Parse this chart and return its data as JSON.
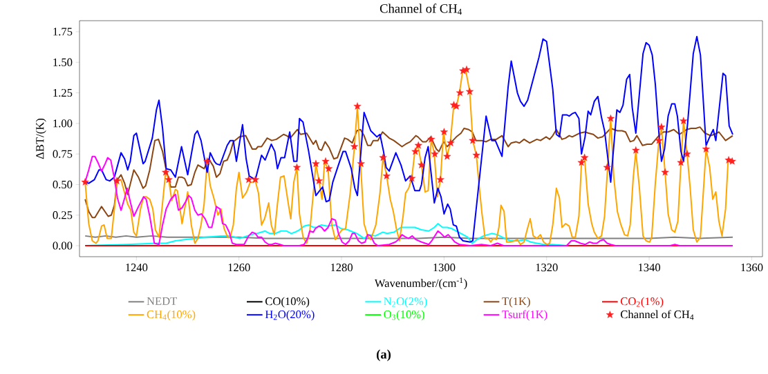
{
  "chart_data": {
    "type": "line",
    "title": "Channel of CH$_{4}$",
    "xlabel": "Wavenumber/(cm$^{-1}$)",
    "ylabel": "ΔBT/(K)",
    "annotations": [
      "(a)"
    ],
    "xlim": [
      1228.9,
      1362.1
    ],
    "ylim": [
      -0.09,
      1.84
    ],
    "xticks": [
      1240,
      1260,
      1280,
      1300,
      1320,
      1340,
      1360
    ],
    "yticks": [
      {
        "value": 0,
        "label": "0.00"
      },
      {
        "value": 0.25,
        "label": "0.25"
      },
      {
        "value": 0.5,
        "label": "0.50"
      },
      {
        "value": 0.75,
        "label": "0.75"
      },
      {
        "value": 1,
        "label": "1.00"
      },
      {
        "value": 1.25,
        "label": "1.25"
      },
      {
        "value": 1.5,
        "label": "1.50"
      },
      {
        "value": 1.75,
        "label": "1.75"
      }
    ],
    "legend": "bottom",
    "series": [
      {
        "name": "NEDT",
        "color": "#808080",
        "x": [
          1230,
          1232,
          1234,
          1236,
          1238,
          1240,
          1243,
          1246,
          1250,
          1255,
          1260,
          1265,
          1270,
          1275,
          1280,
          1285,
          1290,
          1295,
          1300,
          1305,
          1310,
          1315,
          1320,
          1325,
          1330,
          1335,
          1340,
          1345,
          1350,
          1356.3
        ],
        "values": [
          0.08,
          0.07,
          0.08,
          0.07,
          0.08,
          0.07,
          0.08,
          0.07,
          0.07,
          0.07,
          0.07,
          0.06,
          0.06,
          0.06,
          0.06,
          0.06,
          0.06,
          0.06,
          0.07,
          0.06,
          0.06,
          0.06,
          0.06,
          0.06,
          0.06,
          0.06,
          0.06,
          0.07,
          0.06,
          0.07
        ]
      },
      {
        "name": "CO(10%)",
        "color": "#000000"
      },
      {
        "name": "N$_{2}$O(2%)",
        "color": "#00ffff",
        "x": [
          1230.0,
          1238.1,
          1244.0,
          1245.8,
          1247.6,
          1249.4,
          1251.8,
          1253.4,
          1256.5,
          1258.3,
          1260.1,
          1262.4,
          1263.5,
          1265.1,
          1266.0,
          1267.1,
          1268.2,
          1269.3,
          1270.2,
          1270.9,
          1271.8,
          1272.7,
          1273.6,
          1274.5,
          1275.2,
          1276.1,
          1277.2,
          1278.8,
          1279.9,
          1281.2,
          1283.0,
          1284.4,
          1285.3,
          1286.6,
          1288.0,
          1288.9,
          1290.2,
          1291.6,
          1292.5,
          1294.3,
          1295.6,
          1297.0,
          1298.1,
          1298.8,
          1299.7,
          1300.6,
          1301.5,
          1302.4,
          1303.3,
          1304.6,
          1305.5,
          1306.4,
          1307.7,
          1309.3,
          1310.4,
          1311.8,
          1312.9,
          1314.5,
          1315.8,
          1316.9,
          1318.1,
          1319.4,
          1321.2,
          1323.9,
          1326.6,
          1356.3
        ],
        "values": [
          0.0,
          0.01,
          0.02,
          0.02,
          0.04,
          0.05,
          0.06,
          0.07,
          0.08,
          0.08,
          0.06,
          0.09,
          0.1,
          0.12,
          0.1,
          0.1,
          0.12,
          0.12,
          0.1,
          0.11,
          0.13,
          0.16,
          0.17,
          0.15,
          0.15,
          0.17,
          0.16,
          0.17,
          0.14,
          0.13,
          0.1,
          0.06,
          0.09,
          0.08,
          0.11,
          0.1,
          0.11,
          0.15,
          0.15,
          0.15,
          0.13,
          0.12,
          0.15,
          0.18,
          0.15,
          0.15,
          0.14,
          0.12,
          0.1,
          0.07,
          0.02,
          0.05,
          0.08,
          0.1,
          0.09,
          0.06,
          0.04,
          0.04,
          0.05,
          0.03,
          0.02,
          0.01,
          0.01,
          0.0,
          0.0,
          0.0
        ]
      },
      {
        "name": "T(1K)",
        "color": "#8b4513",
        "x": [
          1230.0,
          1230.7,
          1231.4,
          1231.9,
          1233.2,
          1234.5,
          1235.1,
          1235.7,
          1236.3,
          1237.0,
          1237.7,
          1238.3,
          1239.5,
          1240.4,
          1241.3,
          1241.8,
          1242.6,
          1243.6,
          1244.3,
          1245.1,
          1245.8,
          1246.7,
          1247.6,
          1248.2,
          1248.9,
          1249.4,
          1250.0,
          1250.7,
          1251.4,
          1252.0,
          1253.2,
          1254.1,
          1255.0,
          1255.6,
          1256.3,
          1257.0,
          1257.7,
          1258.3,
          1258.9,
          1260.1,
          1261.3,
          1261.9,
          1262.6,
          1263.3,
          1263.7,
          1264.4,
          1265.5,
          1266.4,
          1267.3,
          1268.7,
          1269.3,
          1270.0,
          1271.4,
          1272.0,
          1273.2,
          1274.5,
          1275.0,
          1275.6,
          1276.1,
          1276.8,
          1277.6,
          1278.5,
          1279.2,
          1280.6,
          1281.2,
          1282.1,
          1283.0,
          1283.7,
          1284.4,
          1285.1,
          1285.7,
          1286.2,
          1287.1,
          1288.0,
          1289.3,
          1290.2,
          1291.8,
          1292.5,
          1293.4,
          1294.5,
          1294.9,
          1295.8,
          1296.5,
          1297.4,
          1298.5,
          1299.0,
          1299.9,
          1300.6,
          1301.5,
          1302.4,
          1303.3,
          1303.9,
          1304.8,
          1305.5,
          1306.2,
          1307.3,
          1308.2,
          1309.1,
          1310.2,
          1311.3,
          1312.5,
          1313.1,
          1314.0,
          1314.7,
          1315.6,
          1316.7,
          1318.1,
          1318.8,
          1319.9,
          1320.6,
          1321.2,
          1321.9,
          1323.0,
          1323.7,
          1324.4,
          1325.0,
          1326.4,
          1327.5,
          1328.2,
          1329.1,
          1330.0,
          1330.9,
          1332.5,
          1333.8,
          1334.7,
          1335.4,
          1336.3,
          1337.0,
          1337.6,
          1338.7,
          1339.6,
          1340.5,
          1341.9,
          1342.8,
          1343.7,
          1344.8,
          1345.9,
          1347.3,
          1348.2,
          1349.1,
          1349.9,
          1350.9,
          1352.0,
          1352.7,
          1353.6,
          1354.9,
          1356.3
        ],
        "values": [
          0.38,
          0.28,
          0.23,
          0.23,
          0.32,
          0.24,
          0.25,
          0.33,
          0.54,
          0.58,
          0.51,
          0.42,
          0.62,
          0.56,
          0.47,
          0.49,
          0.62,
          0.86,
          0.87,
          0.77,
          0.62,
          0.48,
          0.48,
          0.56,
          0.56,
          0.55,
          0.49,
          0.5,
          0.6,
          0.66,
          0.63,
          0.71,
          0.65,
          0.56,
          0.59,
          0.69,
          0.7,
          0.76,
          0.85,
          0.89,
          0.9,
          0.85,
          0.79,
          0.79,
          0.81,
          0.81,
          0.88,
          0.86,
          0.87,
          0.91,
          0.9,
          0.88,
          0.95,
          0.91,
          0.92,
          0.83,
          0.86,
          0.79,
          0.78,
          0.85,
          0.8,
          0.71,
          0.72,
          0.88,
          0.87,
          0.84,
          0.94,
          0.95,
          0.9,
          0.82,
          0.82,
          0.86,
          0.86,
          0.93,
          0.88,
          0.86,
          0.81,
          0.83,
          0.85,
          0.9,
          0.89,
          0.85,
          0.85,
          0.89,
          0.79,
          0.77,
          0.85,
          0.81,
          0.85,
          0.89,
          0.92,
          0.96,
          0.95,
          0.93,
          0.86,
          0.86,
          0.85,
          0.87,
          0.87,
          0.9,
          0.81,
          0.84,
          0.85,
          0.84,
          0.87,
          0.84,
          0.87,
          0.86,
          0.89,
          0.87,
          0.9,
          0.95,
          0.87,
          0.88,
          0.9,
          0.89,
          0.92,
          0.93,
          0.92,
          0.91,
          0.88,
          0.89,
          0.96,
          0.94,
          0.94,
          0.93,
          0.85,
          0.86,
          0.9,
          0.82,
          0.83,
          0.83,
          0.9,
          0.93,
          0.93,
          0.95,
          0.91,
          0.95,
          0.96,
          0.96,
          0.97,
          0.92,
          0.9,
          0.91,
          0.93,
          0.86,
          0.9
        ]
      },
      {
        "name": "CO$_{2}$(1%)",
        "color": "#ff0000",
        "x": [
          1230,
          1356.3
        ],
        "values": [
          0,
          0
        ]
      },
      {
        "name": "CH$_{4}$(10%)",
        "color": "#ffa500",
        "x": [
          1230.0,
          1230.7,
          1231.4,
          1232.1,
          1232.5,
          1233.2,
          1233.7,
          1234.3,
          1235.1,
          1235.8,
          1236.3,
          1237.0,
          1237.7,
          1238.3,
          1238.9,
          1239.5,
          1240.0,
          1240.8,
          1241.4,
          1241.9,
          1242.6,
          1243.2,
          1243.7,
          1244.4,
          1245.1,
          1245.7,
          1246.3,
          1246.9,
          1247.6,
          1248.0,
          1248.9,
          1250.0,
          1250.7,
          1251.4,
          1252.0,
          1252.6,
          1253.2,
          1253.8,
          1254.4,
          1255.1,
          1255.9,
          1256.5,
          1257.1,
          1257.8,
          1258.3,
          1258.9,
          1259.5,
          1260.0,
          1260.7,
          1261.5,
          1262.2,
          1262.6,
          1263.2,
          1263.8,
          1264.4,
          1265.0,
          1265.8,
          1266.3,
          1266.9,
          1267.5,
          1268.1,
          1268.8,
          1269.6,
          1270.1,
          1270.7,
          1271.3,
          1271.8,
          1272.5,
          1273.2,
          1273.8,
          1274.5,
          1275.0,
          1275.6,
          1276.2,
          1276.7,
          1277.4,
          1278.1,
          1278.8,
          1279.4,
          1280.1,
          1280.8,
          1281.7,
          1282.5,
          1283.1,
          1283.7,
          1284.4,
          1285.1,
          1285.7,
          1286.7,
          1287.5,
          1288.1,
          1288.8,
          1289.5,
          1290.1,
          1290.7,
          1291.3,
          1292.0,
          1292.5,
          1293.1,
          1293.7,
          1294.3,
          1294.9,
          1295.6,
          1296.3,
          1296.9,
          1297.5,
          1298.1,
          1298.7,
          1299.3,
          1299.9,
          1300.6,
          1301.2,
          1301.9,
          1302.4,
          1303.0,
          1303.6,
          1304.2,
          1305.0,
          1305.6,
          1306.3,
          1306.8,
          1307.4,
          1308.0,
          1308.6,
          1309.1,
          1309.6,
          1310.2,
          1310.7,
          1311.1,
          1311.7,
          1312.2,
          1312.9,
          1313.8,
          1314.3,
          1314.9,
          1315.6,
          1316.2,
          1316.8,
          1317.4,
          1318.1,
          1318.8,
          1319.4,
          1320.1,
          1320.6,
          1321.2,
          1321.9,
          1322.5,
          1323.0,
          1323.7,
          1324.4,
          1325.0,
          1325.6,
          1326.3,
          1326.8,
          1327.4,
          1328.1,
          1328.8,
          1329.3,
          1330.0,
          1330.7,
          1331.3,
          1331.9,
          1332.5,
          1333.1,
          1333.8,
          1334.5,
          1335.2,
          1335.8,
          1336.3,
          1336.9,
          1337.4,
          1338.1,
          1338.8,
          1339.4,
          1340.1,
          1340.5,
          1341.2,
          1341.9,
          1342.4,
          1343.1,
          1343.7,
          1344.4,
          1345.0,
          1345.6,
          1346.2,
          1346.7,
          1347.4,
          1348.0,
          1348.6,
          1349.3,
          1350.0,
          1351.1,
          1351.8,
          1352.4,
          1353.0,
          1353.6,
          1354.2,
          1354.9,
          1355.4,
          1356.1
        ],
        "values": [
          0.52,
          0.18,
          0.04,
          0.02,
          0.04,
          0.16,
          0.17,
          0.06,
          0.06,
          0.34,
          0.53,
          0.54,
          0.43,
          0.34,
          0.29,
          0.11,
          0.08,
          0.3,
          0.4,
          0.4,
          0.38,
          0.3,
          0.13,
          0.07,
          0.35,
          0.6,
          0.54,
          0.37,
          0.46,
          0.45,
          0.18,
          0.44,
          0.17,
          0.02,
          0.06,
          0.17,
          0.34,
          0.69,
          0.49,
          0.39,
          0.25,
          0.3,
          0.14,
          0.07,
          0.07,
          0.17,
          0.47,
          0.6,
          0.39,
          0.44,
          0.52,
          0.52,
          0.53,
          0.43,
          0.17,
          0.22,
          0.35,
          0.17,
          0.09,
          0.34,
          0.56,
          0.57,
          0.35,
          0.22,
          0.52,
          0.64,
          0.26,
          0.07,
          0.02,
          0.11,
          0.43,
          0.67,
          0.53,
          0.38,
          0.69,
          0.62,
          0.17,
          0.05,
          0.09,
          0.13,
          0.14,
          0.43,
          0.8,
          1.14,
          0.68,
          0.18,
          0.08,
          0.05,
          0.17,
          0.43,
          0.72,
          0.57,
          0.38,
          0.28,
          0.14,
          0.04,
          0.24,
          0.43,
          0.47,
          0.55,
          0.77,
          0.82,
          0.66,
          0.44,
          0.45,
          0.87,
          0.75,
          0.4,
          0.54,
          0.93,
          0.73,
          0.84,
          1.15,
          1.14,
          1.25,
          1.42,
          1.44,
          1.26,
          0.86,
          0.74,
          0.51,
          0.26,
          0.06,
          0.06,
          0.03,
          0.06,
          0.05,
          0.15,
          0.33,
          0.28,
          0.03,
          0.03,
          0.04,
          0.05,
          0.01,
          0.03,
          0.13,
          0.22,
          0.08,
          0.06,
          0.09,
          0.03,
          0.01,
          0.02,
          0.17,
          0.47,
          0.39,
          0.15,
          0.18,
          0.16,
          0.07,
          0.07,
          0.24,
          0.68,
          0.72,
          0.34,
          0.18,
          0.11,
          0.06,
          0.08,
          0.24,
          0.64,
          1.04,
          0.56,
          0.28,
          0.17,
          0.09,
          0.08,
          0.17,
          0.56,
          0.77,
          0.47,
          0.08,
          0.04,
          0.03,
          0.07,
          0.51,
          0.86,
          0.97,
          0.6,
          0.26,
          0.13,
          0.11,
          0.2,
          0.68,
          1.02,
          0.75,
          0.47,
          0.13,
          0.03,
          0.07,
          0.79,
          0.64,
          0.38,
          0.44,
          0.2,
          0.08,
          0.3,
          0.7,
          0.69
        ]
      },
      {
        "name": "H$_{2}$O(20%)",
        "color": "#0000ff",
        "x": [
          1230.0,
          1230.7,
          1231.8,
          1232.7,
          1233.2,
          1234.1,
          1234.8,
          1235.7,
          1237.0,
          1237.7,
          1238.3,
          1238.8,
          1239.5,
          1240.0,
          1241.3,
          1241.7,
          1243.1,
          1243.9,
          1244.4,
          1245.1,
          1245.8,
          1246.7,
          1247.6,
          1248.8,
          1250.0,
          1251.4,
          1251.9,
          1252.6,
          1253.8,
          1254.4,
          1255.2,
          1255.6,
          1256.3,
          1257.7,
          1258.3,
          1258.9,
          1259.5,
          1260.7,
          1261.4,
          1262.0,
          1263.2,
          1264.4,
          1265.1,
          1266.3,
          1267.0,
          1267.5,
          1268.2,
          1268.9,
          1269.9,
          1270.7,
          1271.3,
          1271.8,
          1272.5,
          1273.6,
          1275.0,
          1276.3,
          1277.0,
          1277.6,
          1278.3,
          1279.4,
          1280.3,
          1280.8,
          1281.9,
          1282.6,
          1283.1,
          1284.4,
          1285.7,
          1286.9,
          1287.5,
          1288.2,
          1288.7,
          1289.3,
          1290.6,
          1291.6,
          1292.5,
          1293.4,
          1294.3,
          1295.2,
          1295.6,
          1296.3,
          1296.9,
          1297.3,
          1298.1,
          1298.8,
          1299.4,
          1300.0,
          1300.7,
          1301.2,
          1301.8,
          1302.4,
          1303.0,
          1303.7,
          1305.1,
          1305.6,
          1308.2,
          1309.3,
          1310.0,
          1311.3,
          1312.5,
          1313.1,
          1314.3,
          1314.9,
          1315.6,
          1316.3,
          1318.5,
          1319.3,
          1320.0,
          1321.2,
          1321.9,
          1322.5,
          1323.1,
          1323.9,
          1324.4,
          1325.0,
          1325.6,
          1326.3,
          1326.8,
          1327.5,
          1328.1,
          1328.6,
          1329.3,
          1330.0,
          1330.7,
          1331.3,
          1332.5,
          1333.7,
          1334.3,
          1334.9,
          1335.6,
          1336.2,
          1336.7,
          1337.4,
          1338.8,
          1339.4,
          1340.0,
          1340.6,
          1341.2,
          1341.9,
          1342.4,
          1343.0,
          1343.7,
          1344.4,
          1345.0,
          1345.5,
          1346.2,
          1346.7,
          1347.5,
          1348.6,
          1349.3,
          1350.0,
          1351.1,
          1351.7,
          1352.5,
          1353.0,
          1354.4,
          1354.9,
          1355.6,
          1356.3
        ],
        "values": [
          0.52,
          0.51,
          0.54,
          0.62,
          0.62,
          0.54,
          0.53,
          0.56,
          0.76,
          0.71,
          0.62,
          0.69,
          0.9,
          0.92,
          0.67,
          0.69,
          0.88,
          1.11,
          1.19,
          0.96,
          0.63,
          0.62,
          0.56,
          0.81,
          0.58,
          0.91,
          0.94,
          0.86,
          0.6,
          0.76,
          0.69,
          0.67,
          0.66,
          0.82,
          0.86,
          0.86,
          0.69,
          0.99,
          0.71,
          0.57,
          0.54,
          0.74,
          0.7,
          0.83,
          0.77,
          0.63,
          0.72,
          0.72,
          0.93,
          0.69,
          0.69,
          1.04,
          1.01,
          0.77,
          0.41,
          0.48,
          0.36,
          0.37,
          0.52,
          0.66,
          0.77,
          0.77,
          0.63,
          0.47,
          0.41,
          1.09,
          0.94,
          0.89,
          0.91,
          0.77,
          0.64,
          0.61,
          0.76,
          0.66,
          0.53,
          0.57,
          0.45,
          0.45,
          0.5,
          0.72,
          0.81,
          0.66,
          0.35,
          0.47,
          0.4,
          0.26,
          0.34,
          0.3,
          0.17,
          0.16,
          0.07,
          0.04,
          0.03,
          0.04,
          1.06,
          0.86,
          0.86,
          0.73,
          1.3,
          1.51,
          1.25,
          1.18,
          1.14,
          1.19,
          1.54,
          1.69,
          1.67,
          1.28,
          0.91,
          0.89,
          1.07,
          1.07,
          1.06,
          1.08,
          1.09,
          1.04,
          0.75,
          0.89,
          1.1,
          1.07,
          1.18,
          1.22,
          1.05,
          0.94,
          0.52,
          1.11,
          1.09,
          1.15,
          1.36,
          1.4,
          1.13,
          0.92,
          1.57,
          1.66,
          1.64,
          1.56,
          1.32,
          0.92,
          0.69,
          0.79,
          1.06,
          1.16,
          1.16,
          1.06,
          0.77,
          0.69,
          1.0,
          1.57,
          1.71,
          1.56,
          0.82,
          0.88,
          0.95,
          0.86,
          1.41,
          1.39,
          0.98,
          0.91
        ]
      },
      {
        "name": "O$_{3}$(10%)",
        "color": "#00ff00"
      },
      {
        "name": "Tsurf(1K)",
        "color": "#ff00ff",
        "x": [
          1230.0,
          1230.7,
          1231.4,
          1231.9,
          1232.5,
          1233.2,
          1233.9,
          1234.4,
          1235.0,
          1235.7,
          1236.3,
          1237.0,
          1237.7,
          1238.2,
          1238.8,
          1239.5,
          1240.4,
          1241.4,
          1241.9,
          1242.6,
          1243.5,
          1244.4,
          1245.1,
          1245.8,
          1246.7,
          1247.6,
          1248.2,
          1248.9,
          1249.6,
          1250.2,
          1250.7,
          1251.4,
          1252.0,
          1252.7,
          1253.4,
          1254.1,
          1254.7,
          1255.6,
          1256.3,
          1256.8,
          1257.4,
          1258.1,
          1258.7,
          1259.5,
          1261.0,
          1261.9,
          1262.6,
          1263.2,
          1263.7,
          1264.4,
          1265.1,
          1265.8,
          1266.4,
          1267.1,
          1268.0,
          1268.7,
          1271.8,
          1272.7,
          1273.4,
          1273.8,
          1274.5,
          1274.9,
          1275.6,
          1276.1,
          1276.7,
          1277.4,
          1278.1,
          1278.8,
          1279.4,
          1280.1,
          1280.8,
          1281.5,
          1282.1,
          1282.6,
          1283.3,
          1283.9,
          1284.6,
          1285.1,
          1285.7,
          1286.4,
          1287.1,
          1289.3,
          1290.5,
          1291.1,
          1291.8,
          1292.5,
          1293.1,
          1293.8,
          1294.5,
          1295.6,
          1297.0,
          1297.6,
          1298.8,
          1299.4,
          1300.1,
          1300.8,
          1301.5,
          1302.1,
          1303.0,
          1305.1,
          1307.3,
          1309.1,
          1310.4,
          1311.6,
          1323.9,
          1324.8,
          1325.5,
          1326.6,
          1327.5,
          1328.4,
          1329.1,
          1329.8,
          1330.4,
          1331.1,
          1331.8,
          1332.5,
          1333.4,
          1344.1,
          1345.0,
          1345.9,
          1356.3
        ],
        "values": [
          0.52,
          0.62,
          0.73,
          0.73,
          0.68,
          0.61,
          0.67,
          0.72,
          0.7,
          0.55,
          0.39,
          0.29,
          0.39,
          0.47,
          0.36,
          0.24,
          0.32,
          0.4,
          0.38,
          0.24,
          0.02,
          0.01,
          0.17,
          0.3,
          0.38,
          0.42,
          0.29,
          0.31,
          0.36,
          0.41,
          0.39,
          0.29,
          0.25,
          0.26,
          0.22,
          0.15,
          0.15,
          0.32,
          0.3,
          0.18,
          0.17,
          0.11,
          0.02,
          0.01,
          0.01,
          0.08,
          0.11,
          0.1,
          0.07,
          0.07,
          0.03,
          0.01,
          0.01,
          0.02,
          0.01,
          0.0,
          0.0,
          0.01,
          0.06,
          0.12,
          0.11,
          0.14,
          0.16,
          0.15,
          0.12,
          0.15,
          0.22,
          0.21,
          0.1,
          0.03,
          0.01,
          0.04,
          0.1,
          0.1,
          0.04,
          0.02,
          0.03,
          0.09,
          0.08,
          0.02,
          0.0,
          0.01,
          0.03,
          0.05,
          0.09,
          0.07,
          0.06,
          0.08,
          0.05,
          0.03,
          0.01,
          0.04,
          0.12,
          0.1,
          0.07,
          0.09,
          0.06,
          0.03,
          0.01,
          0.0,
          0.01,
          0.0,
          0.02,
          0.0,
          0.0,
          0.04,
          0.04,
          0.02,
          0.01,
          0.03,
          0.02,
          0.02,
          0.04,
          0.05,
          0.02,
          0.01,
          0.0,
          0.0,
          0.01,
          0.0,
          0.0
        ]
      },
      {
        "name": "Channel of CH$_{4}$",
        "type": "scatter",
        "marker": "star",
        "color": "#ff2020",
        "x": [
          1230.0,
          1236.2,
          1245.7,
          1246.3,
          1253.8,
          1261.9,
          1263.2,
          1271.3,
          1275.0,
          1275.6,
          1276.9,
          1277.5,
          1282.5,
          1283.1,
          1283.8,
          1288.1,
          1288.8,
          1293.7,
          1294.4,
          1295.0,
          1295.6,
          1297.5,
          1298.2,
          1299.3,
          1300.0,
          1300.6,
          1301.3,
          1301.9,
          1302.4,
          1303.1,
          1303.7,
          1304.4,
          1305.0,
          1305.6,
          1306.3,
          1326.8,
          1327.4,
          1331.8,
          1332.5,
          1337.4,
          1341.9,
          1342.4,
          1343.1,
          1346.2,
          1346.7,
          1347.4,
          1351.1,
          1355.5,
          1356.2
        ],
        "values": [
          0.52,
          0.53,
          0.6,
          0.54,
          0.69,
          0.54,
          0.54,
          0.64,
          0.67,
          0.53,
          0.69,
          0.63,
          0.81,
          1.14,
          0.67,
          0.72,
          0.57,
          0.55,
          0.77,
          0.82,
          0.66,
          0.87,
          0.75,
          0.54,
          0.93,
          0.73,
          0.84,
          1.15,
          1.14,
          1.25,
          1.43,
          1.44,
          1.26,
          0.86,
          0.74,
          0.68,
          0.72,
          0.64,
          1.04,
          0.78,
          0.86,
          0.97,
          0.6,
          0.68,
          1.02,
          0.75,
          0.79,
          0.7,
          0.69
        ]
      }
    ]
  }
}
